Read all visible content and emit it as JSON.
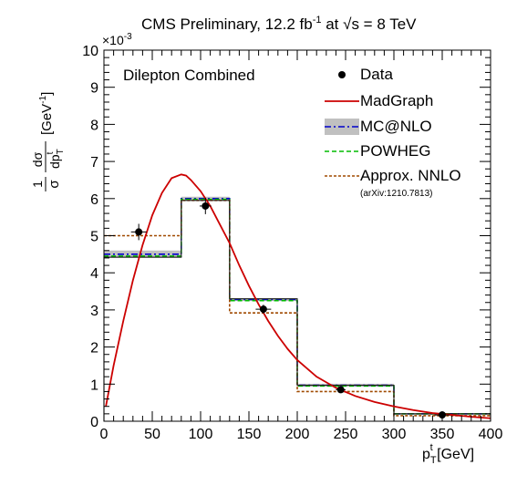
{
  "chart_data": {
    "type": "line",
    "title_main": "CMS Preliminary, 12.2 fb",
    "title_lumi_sup": "-1",
    "title_at": " at ",
    "title_sqrt": "√s",
    "title_energy": " =  8 TeV",
    "annotation": "Dilepton Combined",
    "multiplier": "×10",
    "multiplier_exp": "-3",
    "xlabel": "p",
    "xlabel_sub": "T",
    "xlabel_sup": "t",
    "xlabel_unit": " [GeV]",
    "ylabel_num": "1",
    "ylabel_den": "σ",
    "ylabel_frac_num": "dσ",
    "ylabel_frac_den": "dp",
    "ylabel_frac_den_sub": "T",
    "ylabel_frac_den_sup": "t",
    "ylabel_unit": "[GeV",
    "ylabel_unit_sup": "-1",
    "ylabel_unit_close": "]",
    "xlim": [
      0,
      400
    ],
    "ylim": [
      0,
      10
    ],
    "xticks": [
      "0",
      "50",
      "100",
      "150",
      "200",
      "250",
      "300",
      "350",
      "400"
    ],
    "yticks": [
      "0",
      "1",
      "2",
      "3",
      "4",
      "5",
      "6",
      "7",
      "8",
      "9",
      "10"
    ],
    "bin_edges": [
      0,
      80,
      130,
      200,
      300,
      400
    ],
    "series": [
      {
        "name": "Data",
        "kind": "points",
        "color": "#000000",
        "x": [
          36,
          105,
          165,
          245,
          350
        ],
        "y": [
          5.1,
          5.8,
          3.02,
          0.85,
          0.17
        ],
        "yerr": [
          0.22,
          0.22,
          0.12,
          0.05,
          0.03
        ],
        "xerr": [
          8,
          6,
          8,
          5,
          8
        ]
      },
      {
        "name": "MadGraph",
        "kind": "curve",
        "color": "#cc0000",
        "x": [
          2,
          10,
          20,
          30,
          40,
          50,
          60,
          70,
          80,
          85,
          90,
          100,
          110,
          120,
          130,
          140,
          150,
          160,
          170,
          180,
          190,
          200,
          220,
          240,
          260,
          280,
          300,
          320,
          340,
          360,
          380,
          400
        ],
        "y": [
          0.4,
          1.5,
          2.7,
          3.8,
          4.75,
          5.55,
          6.15,
          6.55,
          6.65,
          6.62,
          6.5,
          6.2,
          5.8,
          5.3,
          4.8,
          4.2,
          3.65,
          3.15,
          2.7,
          2.3,
          1.95,
          1.65,
          1.2,
          0.9,
          0.68,
          0.52,
          0.4,
          0.3,
          0.22,
          0.17,
          0.12,
          0.08
        ]
      },
      {
        "name": "MC@NLO",
        "kind": "hist",
        "color": "#0000cc",
        "band_color": "#c0c0c0",
        "values": [
          4.5,
          6.0,
          3.28,
          0.97,
          0.2
        ],
        "band_err": [
          0.1,
          0.05,
          0.04,
          0.04,
          0.02
        ]
      },
      {
        "name": "POWHEG",
        "kind": "hist",
        "color": "#00bb00",
        "values": [
          4.45,
          5.98,
          3.25,
          0.95,
          0.2
        ]
      },
      {
        "name": "Approx. NNLO",
        "kind": "hist",
        "color": "#a04a00",
        "note": "(arXiv:1210.7813)",
        "values": [
          5.0,
          5.95,
          2.92,
          0.8,
          0.15
        ]
      },
      {
        "name": "",
        "kind": "hist-outline",
        "color": "#222222",
        "values": [
          4.42,
          5.95,
          3.3,
          0.97,
          0.2
        ]
      }
    ],
    "legend_position": "top-right",
    "grid": false
  }
}
